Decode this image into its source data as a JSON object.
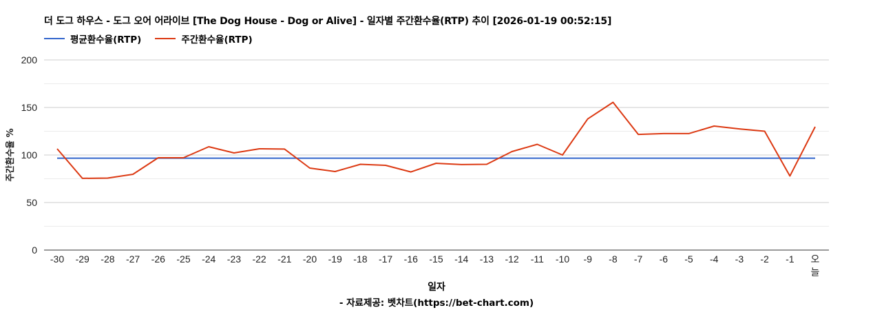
{
  "header": {
    "title": "더 도그 하우스 - 도그 오어 어라이브 [The Dog House - Dog or Alive] - 일자별 주간환수율(RTP) 추이 [2026-01-19 00:52:15]"
  },
  "legend": {
    "items": [
      {
        "label": "평균환수율(RTP)",
        "color": "#3366cc"
      },
      {
        "label": "주간환수율(RTP)",
        "color": "#dc3912"
      }
    ]
  },
  "axes": {
    "x_title": "일자",
    "y_title": "주간환수율 %"
  },
  "footer": {
    "source": "- 자료제공: 벳차트(https://bet-chart.com)"
  },
  "chart_data": {
    "type": "line",
    "title": "더 도그 하우스 - 도그 오어 어라이브 [The Dog House - Dog or Alive] - 일자별 주간환수율(RTP) 추이 [2026-01-19 00:52:15]",
    "xlabel": "일자",
    "ylabel": "주간환수율 %",
    "ylim": [
      0,
      200
    ],
    "yticks": [
      0,
      50,
      100,
      150,
      200
    ],
    "minor_gridlines": [
      25,
      75,
      125,
      175
    ],
    "grid": true,
    "legend_position": "top-left",
    "categories": [
      "-30",
      "-29",
      "-28",
      "-27",
      "-26",
      "-25",
      "-24",
      "-23",
      "-22",
      "-21",
      "-20",
      "-19",
      "-18",
      "-17",
      "-16",
      "-15",
      "-14",
      "-13",
      "-12",
      "-11",
      "-10",
      "-9",
      "-8",
      "-7",
      "-6",
      "-5",
      "-4",
      "-3",
      "-2",
      "-1",
      "오늘"
    ],
    "series": [
      {
        "name": "평균환수율(RTP)",
        "color": "#3366cc",
        "values": [
          96.7,
          96.7,
          96.7,
          96.7,
          96.7,
          96.7,
          96.7,
          96.7,
          96.7,
          96.7,
          96.7,
          96.7,
          96.7,
          96.7,
          96.7,
          96.7,
          96.7,
          96.7,
          96.7,
          96.7,
          96.7,
          96.7,
          96.7,
          96.7,
          96.7,
          96.7,
          96.7,
          96.7,
          96.7,
          96.7,
          96.7
        ]
      },
      {
        "name": "주간환수율(RTP)",
        "color": "#dc3912",
        "values": [
          106.5,
          75.4,
          75.7,
          79.7,
          97.1,
          97.1,
          108.7,
          102.2,
          106.5,
          106.2,
          86.2,
          82.6,
          90.2,
          89.1,
          82.2,
          91.3,
          89.9,
          90.2,
          103.6,
          111.2,
          100.0,
          138.0,
          155.4,
          121.7,
          122.5,
          122.5,
          130.4,
          127.5,
          125.0,
          77.9,
          129.7
        ]
      }
    ]
  }
}
